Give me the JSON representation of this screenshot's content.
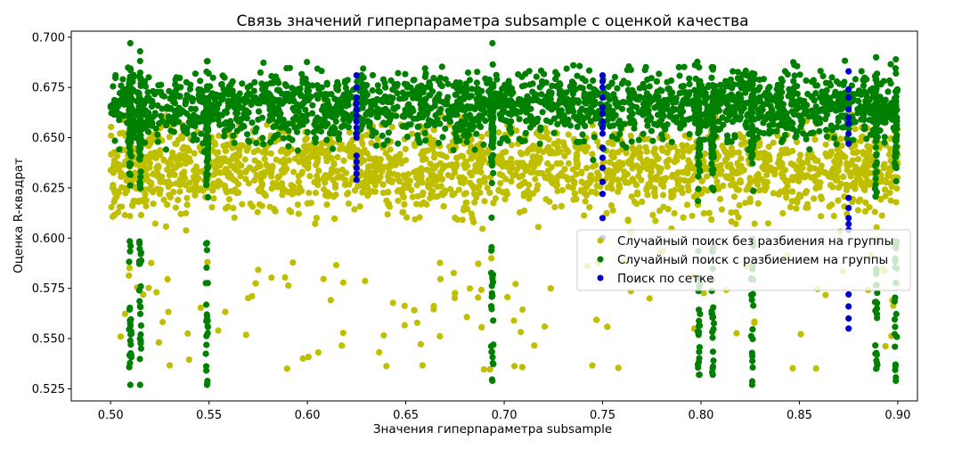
{
  "chart_data": {
    "type": "scatter",
    "title": "Связь значений гиперпараметра subsample с оценкой качества",
    "xlabel": "Значения гиперпараметра subsample",
    "ylabel": "Оценка R-квадрат",
    "xlim": [
      0.48,
      0.91
    ],
    "ylim": [
      0.519,
      0.703
    ],
    "x_ticks": [
      "0.50",
      "0.55",
      "0.60",
      "0.65",
      "0.70",
      "0.75",
      "0.80",
      "0.85",
      "0.90"
    ],
    "y_ticks": [
      "0.525",
      "0.550",
      "0.575",
      "0.600",
      "0.625",
      "0.650",
      "0.675",
      "0.700"
    ],
    "grid": false,
    "legend_position": "center-right",
    "series": [
      {
        "name": "Случайный поиск без разбиения на группы",
        "color": "#bfbf00",
        "x_range": [
          0.5,
          0.9
        ],
        "y_range": [
          0.534,
          0.691
        ],
        "y_typical": 0.635
      },
      {
        "name": "Случайный поиск с разбиением на группы",
        "color": "#008000",
        "x_range": [
          0.5,
          0.9
        ],
        "y_typical": 0.666,
        "dense_columns": [
          {
            "x": 0.51,
            "y_min": 0.527,
            "y_max": 0.697
          },
          {
            "x": 0.515,
            "y_min": 0.527,
            "y_max": 0.693
          },
          {
            "x": 0.549,
            "y_min": 0.527,
            "y_max": 0.688
          },
          {
            "x": 0.694,
            "y_min": 0.529,
            "y_max": 0.697
          },
          {
            "x": 0.799,
            "y_min": 0.532,
            "y_max": 0.685
          },
          {
            "x": 0.806,
            "y_min": 0.532,
            "y_max": 0.685
          },
          {
            "x": 0.826,
            "y_min": 0.527,
            "y_max": 0.682
          },
          {
            "x": 0.889,
            "y_min": 0.535,
            "y_max": 0.69
          },
          {
            "x": 0.899,
            "y_min": 0.529,
            "y_max": 0.689
          }
        ]
      },
      {
        "name": "Поиск по сетке",
        "color": "#0000cc",
        "columns": [
          {
            "x": 0.625,
            "y_values": [
              0.681,
              0.675,
              0.67,
              0.667,
              0.664,
              0.661,
              0.658,
              0.655,
              0.652,
              0.65,
              0.641,
              0.638,
              0.635,
              0.632,
              0.629
            ]
          },
          {
            "x": 0.75,
            "y_values": [
              0.681,
              0.678,
              0.675,
              0.67,
              0.665,
              0.662,
              0.658,
              0.655,
              0.652,
              0.645,
              0.64,
              0.635,
              0.628,
              0.622,
              0.61,
              0.6
            ]
          },
          {
            "x": 0.875,
            "y_values": [
              0.683,
              0.674,
              0.67,
              0.664,
              0.66,
              0.657,
              0.652,
              0.647,
              0.62,
              0.615,
              0.61,
              0.607,
              0.604,
              0.572,
              0.566,
              0.56,
              0.555
            ]
          }
        ]
      }
    ]
  }
}
